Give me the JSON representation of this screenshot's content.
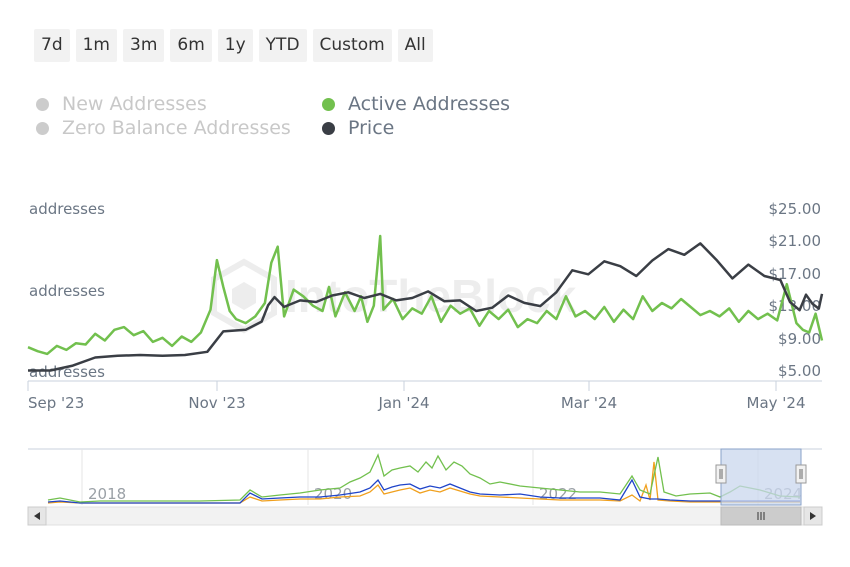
{
  "range_selector": {
    "buttons": [
      "7d",
      "1m",
      "3m",
      "6m",
      "1y",
      "YTD",
      "Custom",
      "All"
    ]
  },
  "legend": [
    {
      "label": "New Addresses",
      "active": false,
      "color": "#cccccc"
    },
    {
      "label": "Zero Balance Addresses",
      "active": false,
      "color": "#cccccc"
    },
    {
      "label": "Active Addresses",
      "active": true,
      "color": "#72c04e"
    },
    {
      "label": "Price",
      "active": true,
      "color": "#3a3e45"
    }
  ],
  "watermark": "IntoTheBlock",
  "chart_data": {
    "type": "line",
    "x_ticks": [
      "Sep '23",
      "Nov '23",
      "Jan '24",
      "Mar '24",
      "May '24"
    ],
    "x_range": [
      "2023-09-01",
      "2024-05-06"
    ],
    "left_axis_ticks": [
      "addresses",
      "addresses",
      "addresses"
    ],
    "right_axis_ticks": [
      "$5.00",
      "$9.00",
      "$13.00",
      "$17.00",
      "$21.00",
      "$25.00"
    ],
    "right_ylim": [
      5,
      25
    ],
    "series": [
      {
        "name": "Active Addresses",
        "color": "#72c04e",
        "axis": "left",
        "scale": [
          0,
          100
        ],
        "points": [
          [
            "2023-09-01",
            17
          ],
          [
            "2023-09-04",
            14
          ],
          [
            "2023-09-07",
            12
          ],
          [
            "2023-09-10",
            18
          ],
          [
            "2023-09-13",
            15
          ],
          [
            "2023-09-16",
            20
          ],
          [
            "2023-09-19",
            19
          ],
          [
            "2023-09-22",
            27
          ],
          [
            "2023-09-25",
            22
          ],
          [
            "2023-09-28",
            30
          ],
          [
            "2023-10-01",
            32
          ],
          [
            "2023-10-04",
            26
          ],
          [
            "2023-10-07",
            29
          ],
          [
            "2023-10-10",
            21
          ],
          [
            "2023-10-13",
            24
          ],
          [
            "2023-10-16",
            18
          ],
          [
            "2023-10-19",
            25
          ],
          [
            "2023-10-22",
            21
          ],
          [
            "2023-10-25",
            28
          ],
          [
            "2023-10-28",
            45
          ],
          [
            "2023-10-30",
            82
          ],
          [
            "2023-11-01",
            62
          ],
          [
            "2023-11-03",
            44
          ],
          [
            "2023-11-05",
            38
          ],
          [
            "2023-11-08",
            35
          ],
          [
            "2023-11-11",
            40
          ],
          [
            "2023-11-14",
            50
          ],
          [
            "2023-11-16",
            80
          ],
          [
            "2023-11-18",
            92
          ],
          [
            "2023-11-20",
            40
          ],
          [
            "2023-11-23",
            60
          ],
          [
            "2023-11-26",
            55
          ],
          [
            "2023-11-29",
            48
          ],
          [
            "2023-12-02",
            44
          ],
          [
            "2023-12-04",
            62
          ],
          [
            "2023-12-06",
            40
          ],
          [
            "2023-12-09",
            58
          ],
          [
            "2023-12-12",
            44
          ],
          [
            "2023-12-14",
            55
          ],
          [
            "2023-12-16",
            36
          ],
          [
            "2023-12-18",
            48
          ],
          [
            "2023-12-20",
            100
          ],
          [
            "2023-12-21",
            45
          ],
          [
            "2023-12-24",
            53
          ],
          [
            "2023-12-27",
            38
          ],
          [
            "2023-12-30",
            46
          ],
          [
            "2024-01-02",
            42
          ],
          [
            "2024-01-05",
            55
          ],
          [
            "2024-01-08",
            36
          ],
          [
            "2024-01-11",
            48
          ],
          [
            "2024-01-14",
            42
          ],
          [
            "2024-01-17",
            46
          ],
          [
            "2024-01-20",
            33
          ],
          [
            "2024-01-23",
            44
          ],
          [
            "2024-01-26",
            38
          ],
          [
            "2024-01-29",
            45
          ],
          [
            "2024-02-01",
            32
          ],
          [
            "2024-02-04",
            38
          ],
          [
            "2024-02-07",
            35
          ],
          [
            "2024-02-10",
            44
          ],
          [
            "2024-02-13",
            38
          ],
          [
            "2024-02-16",
            55
          ],
          [
            "2024-02-19",
            40
          ],
          [
            "2024-02-22",
            44
          ],
          [
            "2024-02-25",
            38
          ],
          [
            "2024-02-28",
            47
          ],
          [
            "2024-03-02",
            36
          ],
          [
            "2024-03-05",
            45
          ],
          [
            "2024-03-08",
            38
          ],
          [
            "2024-03-11",
            55
          ],
          [
            "2024-03-14",
            44
          ],
          [
            "2024-03-17",
            50
          ],
          [
            "2024-03-20",
            46
          ],
          [
            "2024-03-23",
            53
          ],
          [
            "2024-03-26",
            47
          ],
          [
            "2024-03-29",
            41
          ],
          [
            "2024-04-01",
            44
          ],
          [
            "2024-04-04",
            40
          ],
          [
            "2024-04-07",
            46
          ],
          [
            "2024-04-10",
            36
          ],
          [
            "2024-04-13",
            44
          ],
          [
            "2024-04-16",
            38
          ],
          [
            "2024-04-19",
            42
          ],
          [
            "2024-04-22",
            37
          ],
          [
            "2024-04-25",
            64
          ],
          [
            "2024-04-28",
            35
          ],
          [
            "2024-04-30",
            30
          ],
          [
            "2024-05-02",
            28
          ],
          [
            "2024-05-04",
            42
          ],
          [
            "2024-05-06",
            22
          ]
        ]
      },
      {
        "name": "Price",
        "color": "#3a3e45",
        "axis": "right",
        "points": [
          [
            "2023-09-01",
            5.0
          ],
          [
            "2023-09-08",
            5.0
          ],
          [
            "2023-09-15",
            5.6
          ],
          [
            "2023-09-22",
            6.6
          ],
          [
            "2023-09-29",
            6.8
          ],
          [
            "2023-10-06",
            6.9
          ],
          [
            "2023-10-13",
            6.8
          ],
          [
            "2023-10-20",
            6.9
          ],
          [
            "2023-10-27",
            7.3
          ],
          [
            "2023-11-01",
            9.8
          ],
          [
            "2023-11-08",
            10.0
          ],
          [
            "2023-11-13",
            11.0
          ],
          [
            "2023-11-15",
            13.0
          ],
          [
            "2023-11-17",
            14.0
          ],
          [
            "2023-11-20",
            12.8
          ],
          [
            "2023-11-25",
            13.6
          ],
          [
            "2023-11-30",
            13.4
          ],
          [
            "2023-12-05",
            14.2
          ],
          [
            "2023-12-10",
            14.6
          ],
          [
            "2023-12-15",
            13.9
          ],
          [
            "2023-12-20",
            14.4
          ],
          [
            "2023-12-25",
            13.6
          ],
          [
            "2023-12-30",
            13.9
          ],
          [
            "2024-01-04",
            14.7
          ],
          [
            "2024-01-09",
            13.5
          ],
          [
            "2024-01-14",
            13.6
          ],
          [
            "2024-01-19",
            12.3
          ],
          [
            "2024-01-24",
            12.7
          ],
          [
            "2024-01-29",
            14.2
          ],
          [
            "2024-02-03",
            13.3
          ],
          [
            "2024-02-08",
            12.9
          ],
          [
            "2024-02-13",
            14.6
          ],
          [
            "2024-02-18",
            17.3
          ],
          [
            "2024-02-23",
            16.8
          ],
          [
            "2024-02-28",
            18.4
          ],
          [
            "2024-03-04",
            17.8
          ],
          [
            "2024-03-09",
            16.6
          ],
          [
            "2024-03-14",
            18.5
          ],
          [
            "2024-03-19",
            19.9
          ],
          [
            "2024-03-24",
            19.2
          ],
          [
            "2024-03-29",
            20.6
          ],
          [
            "2024-04-03",
            18.6
          ],
          [
            "2024-04-08",
            16.3
          ],
          [
            "2024-04-13",
            18.0
          ],
          [
            "2024-04-18",
            16.6
          ],
          [
            "2024-04-23",
            16.1
          ],
          [
            "2024-04-26",
            13.4
          ],
          [
            "2024-04-29",
            12.4
          ],
          [
            "2024-05-01",
            14.3
          ],
          [
            "2024-05-03",
            13.2
          ],
          [
            "2024-05-05",
            12.6
          ],
          [
            "2024-05-06",
            14.4
          ]
        ]
      }
    ],
    "navigator": {
      "x_labels": [
        "2018",
        "2020",
        "2022",
        "2024"
      ],
      "series_colors": [
        "#72c04e",
        "#1f44c9",
        "#f0a01e"
      ]
    }
  }
}
